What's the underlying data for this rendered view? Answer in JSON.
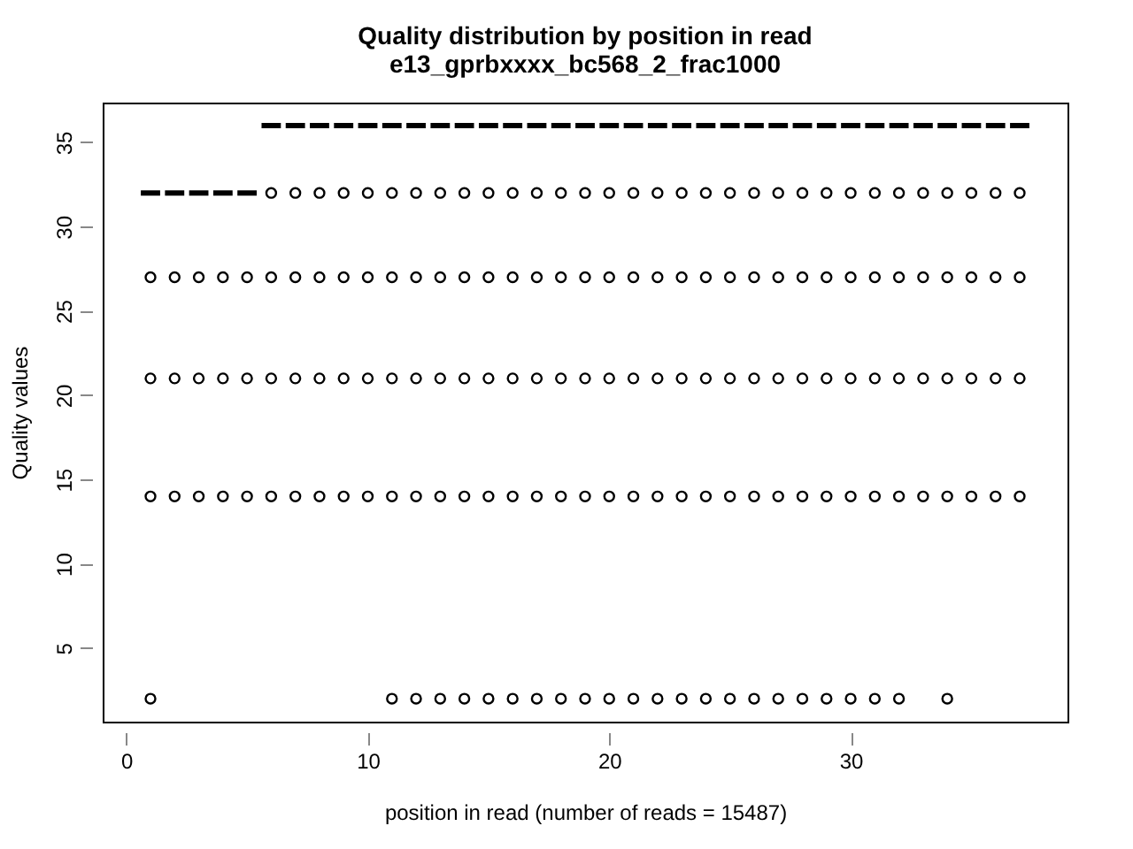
{
  "chart_data": {
    "type": "box",
    "title": "Quality distribution by position in read",
    "subtitle": "e13_gprbxxxx_bc568_2_frac1000",
    "xlabel": "position in read (number of reads = 15487)",
    "ylabel": "Quality values",
    "x": [
      1,
      2,
      3,
      4,
      5,
      6,
      7,
      8,
      9,
      10,
      11,
      12,
      13,
      14,
      15,
      16,
      17,
      18,
      19,
      20,
      21,
      22,
      23,
      24,
      25,
      26,
      27,
      28,
      29,
      30,
      31,
      32,
      33,
      34,
      35,
      36,
      37
    ],
    "xlim": [
      -0.98,
      38.98
    ],
    "xticks": [
      0,
      10,
      20,
      30
    ],
    "ylim": [
      0.64,
      37.36
    ],
    "yticks": [
      5,
      10,
      15,
      20,
      25,
      30,
      35
    ],
    "grid": false,
    "marker": "circle",
    "boxes": [
      {
        "low": 32,
        "q1": 32,
        "median": 32,
        "q3": 32,
        "high": 32,
        "outliers": [
          2,
          14,
          21,
          27
        ]
      },
      {
        "low": 32,
        "q1": 32,
        "median": 32,
        "q3": 32,
        "high": 32,
        "outliers": [
          14,
          21,
          27
        ]
      },
      {
        "low": 32,
        "q1": 32,
        "median": 32,
        "q3": 32,
        "high": 32,
        "outliers": [
          14,
          21,
          27
        ]
      },
      {
        "low": 32,
        "q1": 32,
        "median": 32,
        "q3": 32,
        "high": 32,
        "outliers": [
          14,
          21,
          27
        ]
      },
      {
        "low": 32,
        "q1": 32,
        "median": 32,
        "q3": 32,
        "high": 32,
        "outliers": [
          14,
          21,
          27
        ]
      },
      {
        "low": 36,
        "q1": 36,
        "median": 36,
        "q3": 36,
        "high": 36,
        "outliers": [
          14,
          21,
          27,
          32
        ]
      },
      {
        "low": 36,
        "q1": 36,
        "median": 36,
        "q3": 36,
        "high": 36,
        "outliers": [
          14,
          21,
          27,
          32
        ]
      },
      {
        "low": 36,
        "q1": 36,
        "median": 36,
        "q3": 36,
        "high": 36,
        "outliers": [
          14,
          21,
          27,
          32
        ]
      },
      {
        "low": 36,
        "q1": 36,
        "median": 36,
        "q3": 36,
        "high": 36,
        "outliers": [
          14,
          21,
          27,
          32
        ]
      },
      {
        "low": 36,
        "q1": 36,
        "median": 36,
        "q3": 36,
        "high": 36,
        "outliers": [
          14,
          21,
          27,
          32
        ]
      },
      {
        "low": 36,
        "q1": 36,
        "median": 36,
        "q3": 36,
        "high": 36,
        "outliers": [
          2,
          14,
          21,
          27,
          32
        ]
      },
      {
        "low": 36,
        "q1": 36,
        "median": 36,
        "q3": 36,
        "high": 36,
        "outliers": [
          2,
          14,
          21,
          27,
          32
        ]
      },
      {
        "low": 36,
        "q1": 36,
        "median": 36,
        "q3": 36,
        "high": 36,
        "outliers": [
          2,
          14,
          21,
          27,
          32
        ]
      },
      {
        "low": 36,
        "q1": 36,
        "median": 36,
        "q3": 36,
        "high": 36,
        "outliers": [
          2,
          14,
          21,
          27,
          32
        ]
      },
      {
        "low": 36,
        "q1": 36,
        "median": 36,
        "q3": 36,
        "high": 36,
        "outliers": [
          2,
          14,
          21,
          27,
          32
        ]
      },
      {
        "low": 36,
        "q1": 36,
        "median": 36,
        "q3": 36,
        "high": 36,
        "outliers": [
          2,
          14,
          21,
          27,
          32
        ]
      },
      {
        "low": 36,
        "q1": 36,
        "median": 36,
        "q3": 36,
        "high": 36,
        "outliers": [
          2,
          14,
          21,
          27,
          32
        ]
      },
      {
        "low": 36,
        "q1": 36,
        "median": 36,
        "q3": 36,
        "high": 36,
        "outliers": [
          2,
          14,
          21,
          27,
          32
        ]
      },
      {
        "low": 36,
        "q1": 36,
        "median": 36,
        "q3": 36,
        "high": 36,
        "outliers": [
          2,
          14,
          21,
          27,
          32
        ]
      },
      {
        "low": 36,
        "q1": 36,
        "median": 36,
        "q3": 36,
        "high": 36,
        "outliers": [
          2,
          14,
          21,
          27,
          32
        ]
      },
      {
        "low": 36,
        "q1": 36,
        "median": 36,
        "q3": 36,
        "high": 36,
        "outliers": [
          2,
          14,
          21,
          27,
          32
        ]
      },
      {
        "low": 36,
        "q1": 36,
        "median": 36,
        "q3": 36,
        "high": 36,
        "outliers": [
          2,
          14,
          21,
          27,
          32
        ]
      },
      {
        "low": 36,
        "q1": 36,
        "median": 36,
        "q3": 36,
        "high": 36,
        "outliers": [
          2,
          14,
          21,
          27,
          32
        ]
      },
      {
        "low": 36,
        "q1": 36,
        "median": 36,
        "q3": 36,
        "high": 36,
        "outliers": [
          2,
          14,
          21,
          27,
          32
        ]
      },
      {
        "low": 36,
        "q1": 36,
        "median": 36,
        "q3": 36,
        "high": 36,
        "outliers": [
          2,
          14,
          21,
          27,
          32
        ]
      },
      {
        "low": 36,
        "q1": 36,
        "median": 36,
        "q3": 36,
        "high": 36,
        "outliers": [
          2,
          14,
          21,
          27,
          32
        ]
      },
      {
        "low": 36,
        "q1": 36,
        "median": 36,
        "q3": 36,
        "high": 36,
        "outliers": [
          2,
          14,
          21,
          27,
          32
        ]
      },
      {
        "low": 36,
        "q1": 36,
        "median": 36,
        "q3": 36,
        "high": 36,
        "outliers": [
          2,
          14,
          21,
          27,
          32
        ]
      },
      {
        "low": 36,
        "q1": 36,
        "median": 36,
        "q3": 36,
        "high": 36,
        "outliers": [
          2,
          14,
          21,
          27,
          32
        ]
      },
      {
        "low": 36,
        "q1": 36,
        "median": 36,
        "q3": 36,
        "high": 36,
        "outliers": [
          2,
          14,
          21,
          27,
          32
        ]
      },
      {
        "low": 36,
        "q1": 36,
        "median": 36,
        "q3": 36,
        "high": 36,
        "outliers": [
          2,
          14,
          21,
          27,
          32
        ]
      },
      {
        "low": 36,
        "q1": 36,
        "median": 36,
        "q3": 36,
        "high": 36,
        "outliers": [
          2,
          14,
          21,
          27,
          32
        ]
      },
      {
        "low": 36,
        "q1": 36,
        "median": 36,
        "q3": 36,
        "high": 36,
        "outliers": [
          14,
          21,
          27,
          32
        ]
      },
      {
        "low": 36,
        "q1": 36,
        "median": 36,
        "q3": 36,
        "high": 36,
        "outliers": [
          2,
          14,
          21,
          27,
          32
        ]
      },
      {
        "low": 36,
        "q1": 36,
        "median": 36,
        "q3": 36,
        "high": 36,
        "outliers": [
          14,
          21,
          27,
          32
        ]
      },
      {
        "low": 36,
        "q1": 36,
        "median": 36,
        "q3": 36,
        "high": 36,
        "outliers": [
          14,
          21,
          27,
          32
        ]
      },
      {
        "low": 36,
        "q1": 36,
        "median": 36,
        "q3": 36,
        "high": 36,
        "outliers": [
          14,
          21,
          27,
          32
        ]
      }
    ]
  }
}
